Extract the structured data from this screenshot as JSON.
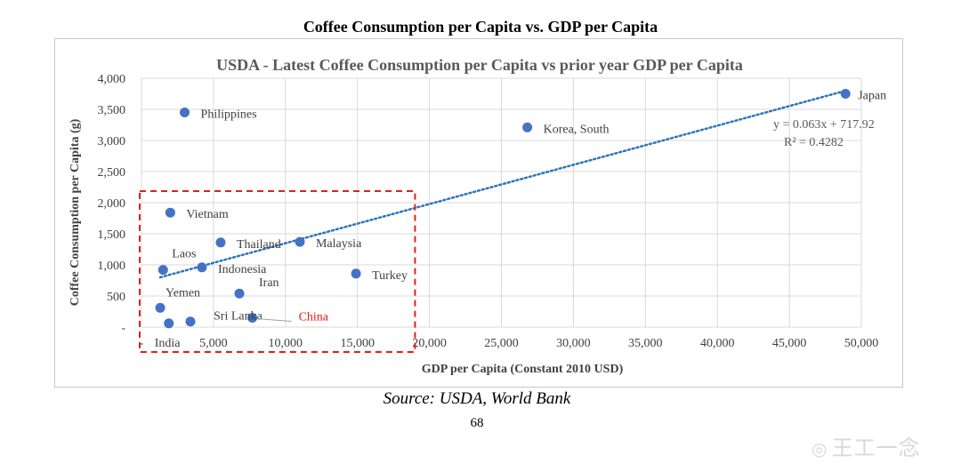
{
  "page": {
    "title": "Coffee Consumption per Capita vs. GDP per Capita",
    "source": "Source: USDA, World Bank",
    "page_number": "68",
    "watermark": "王工一念"
  },
  "colors": {
    "marker": "#4472c4",
    "trendline": "#2e75b6",
    "grid": "#d9d9d9",
    "highlight": "#e0201b",
    "china_label": "#e0201b"
  },
  "chart_data": {
    "type": "scatter",
    "title": "USDA - Latest Coffee Consumption per Capita vs prior year GDP per Capita",
    "xlabel": "GDP per Capita (Constant 2010 USD)",
    "ylabel": "Coffee Consumption per Capita (g)",
    "xlim": [
      0,
      50000
    ],
    "ylim": [
      0,
      4000
    ],
    "xticks": [
      0,
      5000,
      10000,
      15000,
      20000,
      25000,
      30000,
      35000,
      40000,
      45000,
      50000
    ],
    "xtick_labels": [
      "-",
      "5,000",
      "10,000",
      "15,000",
      "20,000",
      "25,000",
      "30,000",
      "35,000",
      "40,000",
      "45,000",
      "50,000"
    ],
    "yticks": [
      0,
      500,
      1000,
      1500,
      2000,
      2500,
      3000,
      3500,
      4000
    ],
    "ytick_labels": [
      "-",
      "500",
      "1,000",
      "1,500",
      "2,000",
      "2,500",
      "3,000",
      "3,500",
      "4,000"
    ],
    "grid": true,
    "points": [
      {
        "label": "Japan",
        "x": 48900,
        "y": 3750
      },
      {
        "label": "Korea, South",
        "x": 26800,
        "y": 3210
      },
      {
        "label": "Philippines",
        "x": 3000,
        "y": 3450
      },
      {
        "label": "Vietnam",
        "x": 2000,
        "y": 1840
      },
      {
        "label": "Thailand",
        "x": 5500,
        "y": 1360
      },
      {
        "label": "Malaysia",
        "x": 11000,
        "y": 1370
      },
      {
        "label": "Laos",
        "x": 1500,
        "y": 920
      },
      {
        "label": "Indonesia",
        "x": 4200,
        "y": 960
      },
      {
        "label": "Turkey",
        "x": 14900,
        "y": 860
      },
      {
        "label": "Iran",
        "x": 6800,
        "y": 540
      },
      {
        "label": "Yemen",
        "x": 1300,
        "y": 310
      },
      {
        "label": "Sri Lanka",
        "x": 3400,
        "y": 90
      },
      {
        "label": "India",
        "x": 1900,
        "y": 60
      },
      {
        "label": "China",
        "x": 7700,
        "y": 150
      }
    ],
    "trendline": {
      "x_start": 1300,
      "x_end": 48900,
      "slope": 0.063,
      "intercept": 717.92,
      "equation": "y = 0.063x + 717.92",
      "r_squared": "R² = 0.4282"
    },
    "highlight_box": {
      "x_min": 0,
      "x_max": 19000,
      "note": "dashed red box around low-GDP countries"
    }
  }
}
